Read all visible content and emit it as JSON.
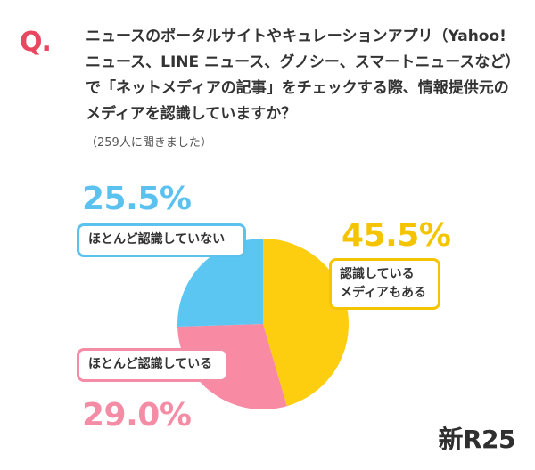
{
  "question": {
    "mark": "Q.",
    "text": "ニュースのポータルサイトやキュレーションアプリ（Yahoo! ニュース、LINE ニュース、グノシー、スマートニュースなど）で「ネットメディアの記事」をチェックする際、情報提供元のメディアを認識していますか？",
    "respondents": "（259人に聞きました）"
  },
  "brand": "新R25",
  "chart_data": {
    "type": "pie",
    "title": "",
    "slices": [
      {
        "label": "認識しているメディアもある",
        "label_lines": [
          "認識している",
          "メディアもある"
        ],
        "value": 45.5,
        "display": "45.5%",
        "color": "#fdcd0f"
      },
      {
        "label": "ほとんど認識している",
        "value": 29.0,
        "display": "29.0%",
        "color": "#f88aa3"
      },
      {
        "label": "ほとんど認識していない",
        "value": 25.5,
        "display": "25.5%",
        "color": "#5bc6f2"
      }
    ],
    "start_angle_deg": 0,
    "direction": "clockwise"
  }
}
